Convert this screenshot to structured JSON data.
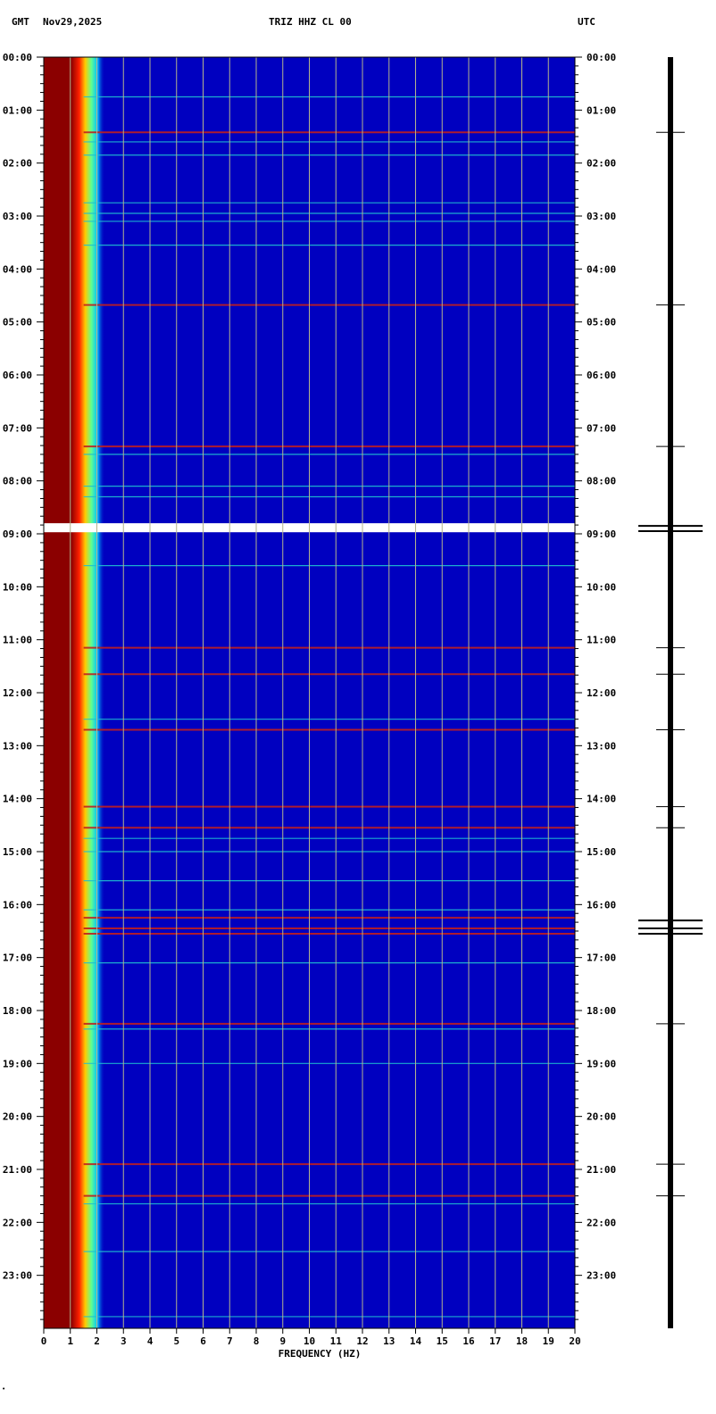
{
  "header": {
    "left_label": "GMT",
    "date": "Nov29,2025",
    "station": "TRIZ HHZ CL 00",
    "right_label": "UTC"
  },
  "colors": {
    "background": "#0000c0",
    "low_freq_band": "#8b0000",
    "gridline": "#b4b48c",
    "gap_line": "#ffffff",
    "trace": "#000000"
  },
  "chart_data": {
    "type": "heatmap",
    "xlabel": "FREQUENCY (HZ)",
    "xlim": [
      0,
      20
    ],
    "x_ticks": [
      "0",
      "1",
      "2",
      "3",
      "4",
      "5",
      "6",
      "7",
      "8",
      "9",
      "10",
      "11",
      "12",
      "13",
      "14",
      "15",
      "16",
      "17",
      "18",
      "19",
      "20"
    ],
    "y_time_ticks": [
      "00:00",
      "01:00",
      "02:00",
      "03:00",
      "04:00",
      "05:00",
      "06:00",
      "07:00",
      "08:00",
      "09:00",
      "10:00",
      "11:00",
      "12:00",
      "13:00",
      "14:00",
      "15:00",
      "16:00",
      "17:00",
      "18:00",
      "19:00",
      "20:00",
      "21:00",
      "22:00",
      "23:00"
    ],
    "ylim_hours": [
      0,
      24
    ],
    "data_gap_hours": [
      8.8,
      8.97
    ],
    "noise_lines_hours": [
      0.75,
      1.42,
      1.6,
      1.85,
      2.75,
      2.95,
      3.1,
      3.55,
      4.68,
      7.35,
      7.5,
      8.1,
      8.3,
      9.6,
      11.15,
      11.65,
      12.5,
      12.7,
      14.15,
      14.55,
      14.75,
      15.0,
      15.55,
      16.1,
      16.25,
      16.45,
      16.55,
      17.1,
      18.25,
      18.35,
      19.0,
      20.9,
      21.5,
      21.65,
      22.55,
      23.78
    ],
    "strong_lines_hours": [
      1.42,
      4.68,
      7.35,
      11.15,
      11.65,
      12.7,
      14.15,
      14.55,
      16.25,
      16.45,
      16.55,
      18.25,
      20.9,
      21.5
    ],
    "trace_spikes_hours": [
      1.42,
      4.68,
      7.35,
      8.85,
      8.95,
      11.15,
      11.65,
      12.7,
      14.15,
      14.55,
      16.3,
      16.45,
      16.55,
      18.25,
      20.9,
      21.5
    ]
  }
}
